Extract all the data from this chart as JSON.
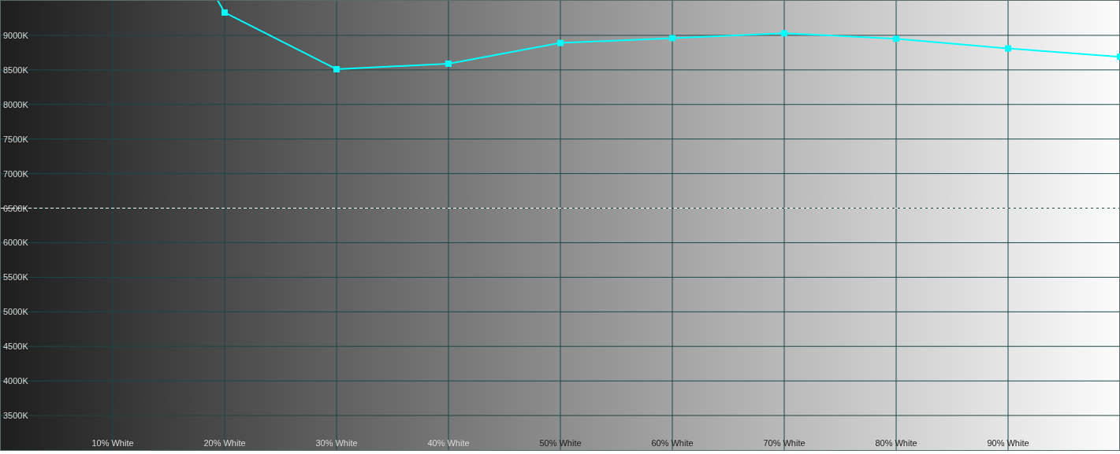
{
  "chart_data": {
    "type": "line",
    "x": [
      20,
      30,
      40,
      50,
      60,
      70,
      80,
      90,
      100
    ],
    "xlim": [
      0,
      100
    ],
    "xticks": [
      {
        "value": 10,
        "label": "10% White"
      },
      {
        "value": 20,
        "label": "20% White"
      },
      {
        "value": 30,
        "label": "30% White"
      },
      {
        "value": 40,
        "label": "40% White"
      },
      {
        "value": 50,
        "label": "50% White"
      },
      {
        "value": 60,
        "label": "60% White"
      },
      {
        "value": 70,
        "label": "70% White"
      },
      {
        "value": 80,
        "label": "80% White"
      },
      {
        "value": 90,
        "label": "90% White"
      }
    ],
    "ylim": [
      3000,
      9500
    ],
    "yticks": [
      {
        "value": 3500,
        "label": "3500K"
      },
      {
        "value": 4000,
        "label": "4000K"
      },
      {
        "value": 4500,
        "label": "4500K"
      },
      {
        "value": 5000,
        "label": "5000K"
      },
      {
        "value": 5500,
        "label": "5500K"
      },
      {
        "value": 6000,
        "label": "6000K"
      },
      {
        "value": 6500,
        "label": "6500K"
      },
      {
        "value": 7000,
        "label": "7000K"
      },
      {
        "value": 7500,
        "label": "7500K"
      },
      {
        "value": 8000,
        "label": "8000K"
      },
      {
        "value": 8500,
        "label": "8500K"
      },
      {
        "value": 9000,
        "label": "9000K"
      }
    ],
    "series": [
      {
        "color": "#00ffff",
        "values": [
          9330,
          8510,
          8590,
          8890,
          8960,
          9030,
          8950,
          8810,
          8690
        ]
      },
      {
        "type": "line",
        "color": "#00ffff",
        "x": [
          19.4,
          20
        ],
        "values": [
          9500,
          9330
        ],
        "marker": "none"
      }
    ],
    "marker": "square",
    "line_style": "solid",
    "grid": true,
    "ref_lines": [
      {
        "axis": "y",
        "value": 6500,
        "color": "#ffffff",
        "line_style": "dashed"
      }
    ]
  }
}
